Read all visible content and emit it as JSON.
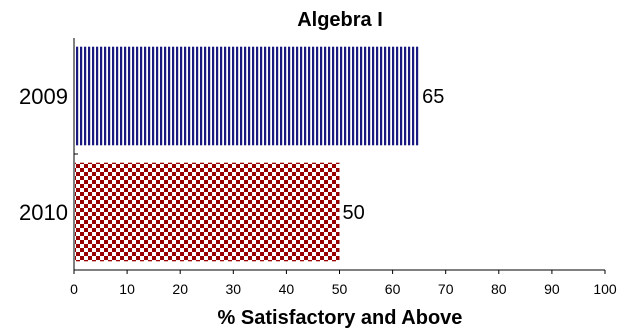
{
  "chart_data": {
    "type": "bar",
    "orientation": "horizontal",
    "title": "Algebra I",
    "xlabel": "% Satisfactory and Above",
    "ylabel": "",
    "categories": [
      "2009",
      "2010"
    ],
    "values": [
      65,
      50
    ],
    "data_labels": [
      "65",
      "50"
    ],
    "xlim": [
      0,
      100
    ],
    "xticks": [
      "0",
      "10",
      "20",
      "30",
      "40",
      "50",
      "60",
      "70",
      "80",
      "90",
      "100"
    ],
    "grid": false,
    "legend": "none",
    "colors": [
      "#1a1a80",
      "#990000"
    ],
    "patterns": [
      "vertical-stripes",
      "checkerboard"
    ]
  }
}
